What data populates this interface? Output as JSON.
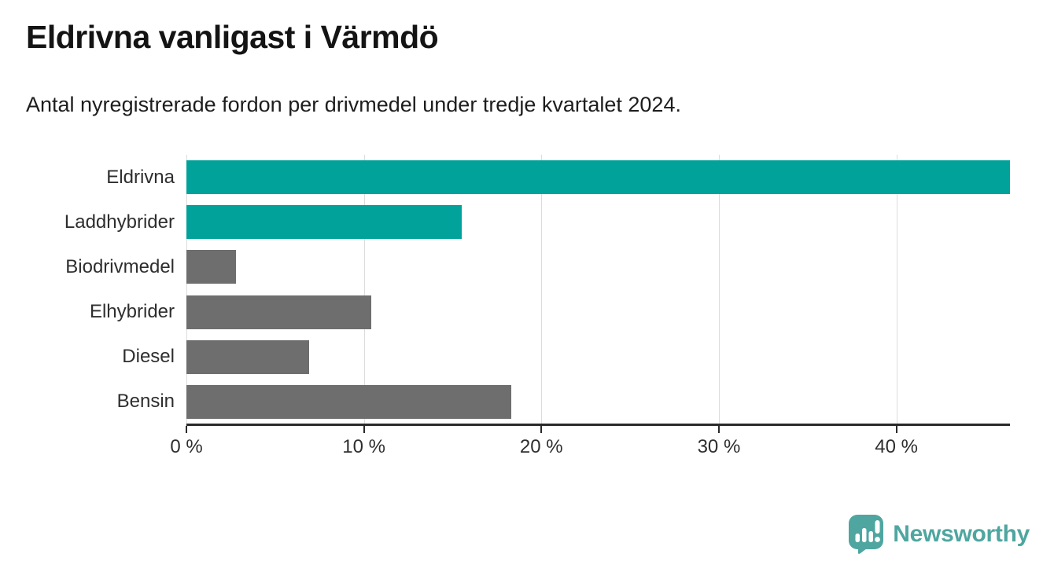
{
  "header": {
    "title": "Eldrivna vanligast i Värmdö",
    "subtitle": "Antal nyregistrerade fordon per drivmedel under tredje kvartalet 2024."
  },
  "chart_data": {
    "type": "bar",
    "orientation": "horizontal",
    "categories": [
      "Eldrivna",
      "Laddhybrider",
      "Biodrivmedel",
      "Elhybrider",
      "Diesel",
      "Bensin"
    ],
    "values": [
      46.4,
      15.5,
      2.8,
      10.4,
      6.9,
      18.3
    ],
    "unit": "%",
    "xlim": [
      0,
      46.4
    ],
    "xticks": [
      0,
      10,
      20,
      30,
      40
    ],
    "xtick_labels": [
      "0 %",
      "10 %",
      "20 %",
      "30 %",
      "40 %"
    ],
    "grid": true,
    "legend": "none",
    "bar_colors": [
      "#00a29a",
      "#00a29a",
      "#6e6e6e",
      "#6e6e6e",
      "#6e6e6e",
      "#6e6e6e"
    ],
    "highlight_color": "#00a29a",
    "default_color": "#6e6e6e",
    "grid_color": "#dcdcdc",
    "axis_color": "#2a2a2a",
    "label_color": "#2e2e2e"
  },
  "branding": {
    "logo_text": "Newsworthy",
    "logo_color": "#4fa6a0",
    "logo_icon": "newsworthy-bubble-chart-icon"
  }
}
